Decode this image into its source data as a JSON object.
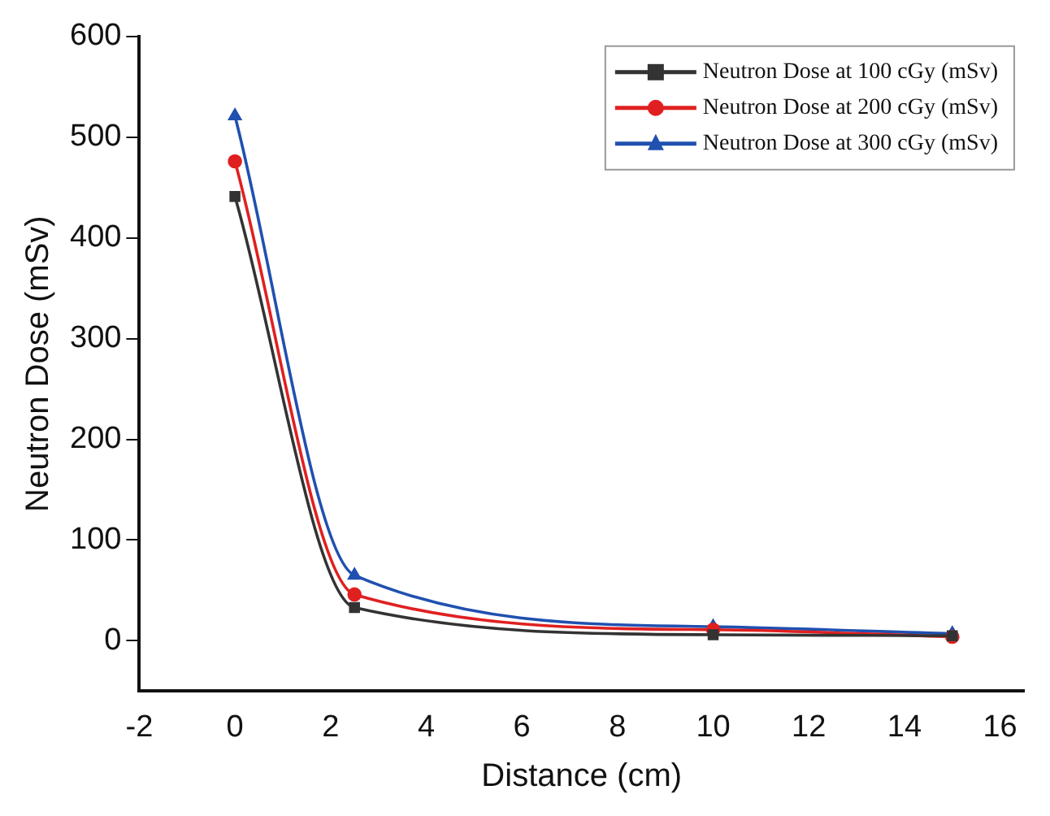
{
  "chart_data": {
    "type": "line",
    "xlabel": "Distance (cm)",
    "ylabel": "Neutron Dose (mSv)",
    "x": [
      0,
      2.5,
      10,
      15
    ],
    "series": [
      {
        "name": "Neutron Dose at 100 cGy (mSv)",
        "color": "#333333",
        "marker": "square",
        "values": [
          441,
          33,
          6,
          5
        ]
      },
      {
        "name": "Neutron Dose at 200 cGy (mSv)",
        "color": "#e02020",
        "marker": "circle",
        "values": [
          476,
          46,
          11,
          4
        ]
      },
      {
        "name": "Neutron Dose at 300 cGy (mSv)",
        "color": "#2050b0",
        "marker": "triangle",
        "values": [
          521,
          65,
          14,
          7
        ]
      }
    ],
    "xlim": [
      -2,
      16.5
    ],
    "xticks": [
      -2,
      0,
      2,
      4,
      6,
      8,
      10,
      12,
      14,
      16
    ],
    "ylim": [
      -50,
      600
    ],
    "yticks": [
      0,
      100,
      200,
      300,
      400,
      500,
      600
    ],
    "grid": false,
    "legend": "top right"
  }
}
